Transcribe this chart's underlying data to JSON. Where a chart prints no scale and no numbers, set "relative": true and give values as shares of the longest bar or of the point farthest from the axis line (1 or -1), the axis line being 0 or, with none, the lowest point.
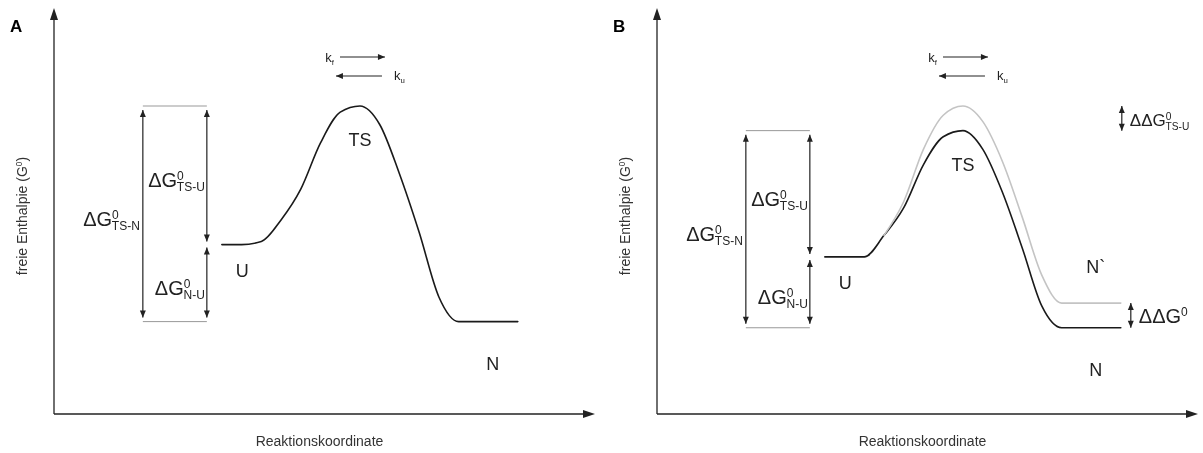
{
  "chart_data": [
    {
      "type": "line",
      "title": "A",
      "xlabel": "Reaktionskoordinate",
      "ylabel": "freie Enthalpie (G$^{0}$)",
      "relative": true,
      "categories": [
        null,
        null,
        null,
        null,
        null,
        null,
        null,
        null,
        null,
        null,
        null,
        null,
        null,
        null,
        null,
        null,
        null,
        null,
        null,
        null,
        null,
        null,
        null,
        null,
        null,
        null,
        null
      ],
      "series": [
        {
          "color": "#1a1a1a",
          "values": [
            null,
            null,
            null,
            null,
            null,
            null,
            null,
            null,
            0.55,
            0.55,
            0.56,
            0.63,
            0.73,
            0.88,
            0.98,
            1.0,
            0.94,
            0.78,
            0.59,
            0.38,
            0.3,
            0.3,
            0.3,
            0.3,
            null,
            null,
            null
          ]
        }
      ],
      "annotations": [
        "U",
        "TS",
        "N",
        "k$_{f}$",
        "k$_{u}$",
        "ΔG$^{0}$$_{TS-U}$",
        "ΔG$^{0}$$_{N-U}$",
        "ΔG$^{0}$$_{TS-N}$"
      ]
    },
    {
      "type": "line",
      "title": "B",
      "xlabel": "Reaktionskoordinate",
      "ylabel": "freie Enthalpie (G$^{0}$)",
      "relative": true,
      "categories": [
        null,
        null,
        null,
        null,
        null,
        null,
        null,
        null,
        null,
        null,
        null,
        null,
        null,
        null,
        null,
        null,
        null,
        null,
        null,
        null,
        null,
        null,
        null,
        null,
        null,
        null,
        null
      ],
      "series": [
        {
          "color": "#1a1a1a",
          "values": [
            null,
            null,
            null,
            null,
            null,
            null,
            null,
            null,
            0.51,
            0.51,
            0.51,
            0.58,
            0.67,
            0.81,
            0.9,
            0.92,
            0.86,
            0.72,
            0.54,
            0.35,
            0.28,
            0.28,
            0.28,
            0.28,
            null,
            null,
            null
          ]
        },
        {
          "color": "#c4c4c4",
          "values": [
            null,
            null,
            null,
            null,
            null,
            null,
            null,
            null,
            null,
            null,
            null,
            0.58,
            0.69,
            0.86,
            0.97,
            1.0,
            0.95,
            0.82,
            0.64,
            0.45,
            0.36,
            0.36,
            0.36,
            0.36,
            null,
            null,
            null
          ]
        }
      ],
      "annotations": [
        "U",
        "TS",
        "N",
        "k$_{f}$",
        "k$_{u}$",
        "ΔG$^{0}$$_{TS-U}$",
        "ΔG$^{0}$$_{N-U}$",
        "ΔG$^{0}$$_{TS-N}$",
        "N`",
        "ΔΔG$^{0}$",
        "ΔΔG$^{0}$$_{TS-U}$"
      ]
    }
  ]
}
